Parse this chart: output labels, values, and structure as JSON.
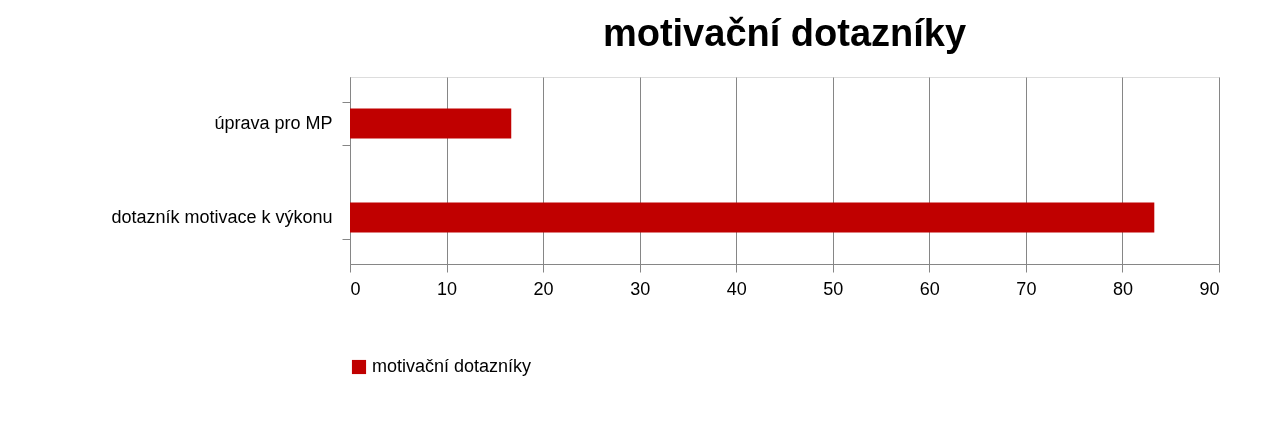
{
  "chart_data": {
    "type": "bar",
    "orientation": "horizontal",
    "title": "motivační dotazníky",
    "categories": [
      "úprava pro MP",
      "dotazník motivace k výkonu"
    ],
    "series": [
      {
        "name": "motivační dotazníky",
        "color": "#c00000",
        "values": [
          16.7,
          83.3
        ]
      }
    ],
    "xlim": [
      0,
      90
    ],
    "xticks": [
      0,
      10,
      20,
      30,
      40,
      50,
      60,
      70,
      80,
      90
    ],
    "grid": "x",
    "legend": "bottom"
  }
}
